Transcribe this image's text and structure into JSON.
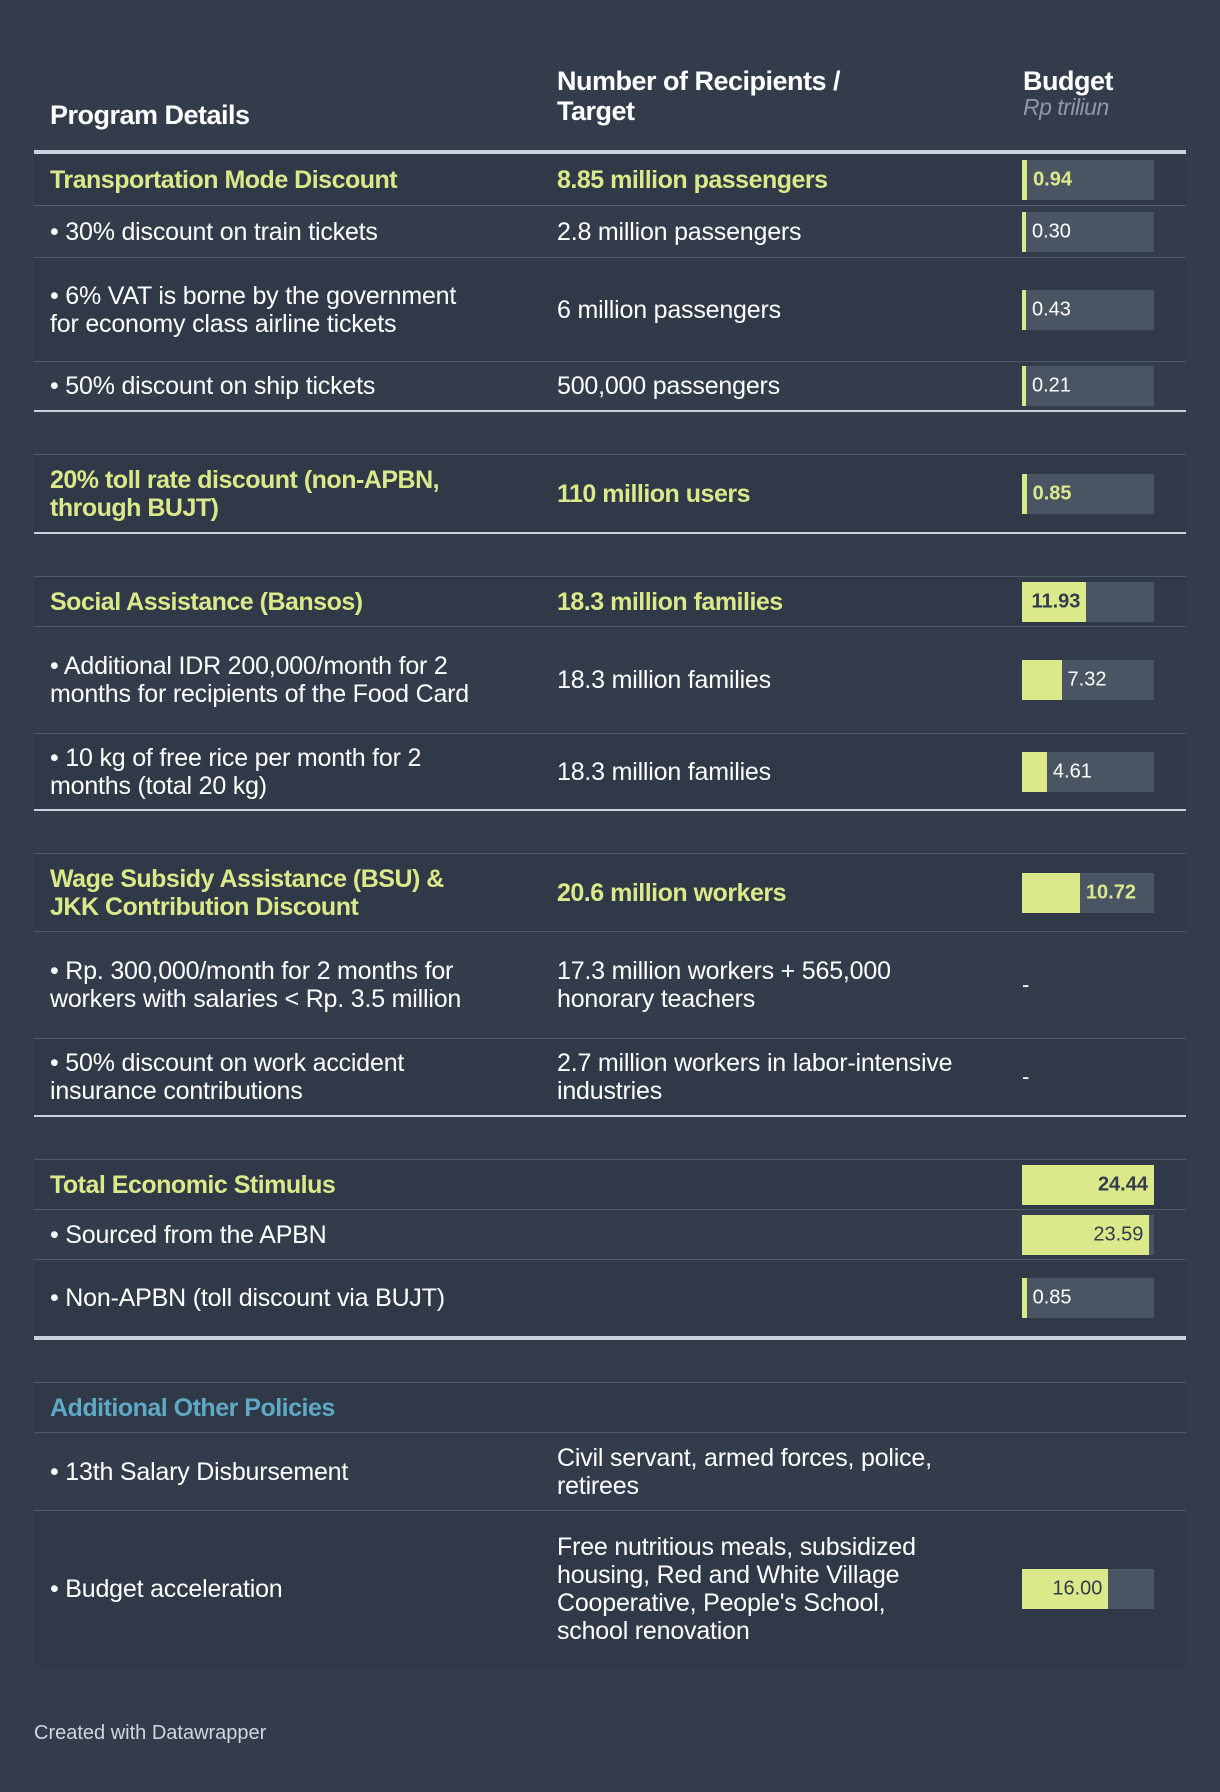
{
  "header": {
    "col1": "Program Details",
    "col2_line1": "Number of Recipients /",
    "col2_line2": "Target",
    "col3": "Budget",
    "col3_sub": "Rp triliun"
  },
  "colors": {
    "background": "#323c4b",
    "bar": "#dbe98a",
    "bar_track": "#4a5564",
    "highlight_text": "#dbe98a",
    "section_text": "#5fa9c6"
  },
  "chart_data": {
    "type": "table",
    "bar_max": 24.44,
    "rows": [
      {
        "program": "Transportation Mode Discount",
        "recipients": "8.85 million passengers",
        "budget": 0.94,
        "budget_label": "0.94",
        "style": "highlight"
      },
      {
        "program": "• 30% discount on train tickets",
        "recipients": "2.8 million passengers",
        "budget": 0.3,
        "budget_label": "0.30",
        "style": "normal"
      },
      {
        "program": "• 6% VAT is borne by the government for economy class airline tickets",
        "recipients": "6 million passengers",
        "budget": 0.43,
        "budget_label": "0.43",
        "style": "normal"
      },
      {
        "program": "• 50% discount on ship tickets",
        "recipients": "500,000 passengers",
        "budget": 0.21,
        "budget_label": "0.21",
        "style": "normal"
      },
      {
        "program": "20% toll rate discount (non-APBN, through BUJT)",
        "recipients": "110 million users",
        "budget": 0.85,
        "budget_label": "0.85",
        "style": "highlight"
      },
      {
        "program": "Social Assistance (Bansos)",
        "recipients": "18.3 million families",
        "budget": 11.93,
        "budget_label": "11.93",
        "style": "highlight"
      },
      {
        "program": "• Additional IDR 200,000/month for 2 months for recipients of the Food Card",
        "recipients": "18.3 million families",
        "budget": 7.32,
        "budget_label": "7.32",
        "style": "normal"
      },
      {
        "program": "• 10 kg of free rice per month for 2 months (total 20 kg)",
        "recipients": "18.3 million families",
        "budget": 4.61,
        "budget_label": "4.61",
        "style": "normal"
      },
      {
        "program": "Wage Subsidy Assistance (BSU) & JKK Contribution Discount",
        "recipients": "20.6 million workers",
        "budget": 10.72,
        "budget_label": "10.72",
        "style": "highlight"
      },
      {
        "program": "• Rp. 300,000/month for 2 months for workers with salaries < Rp. 3.5 million",
        "recipients": "17.3 million workers + 565,000 honorary teachers",
        "budget": null,
        "budget_label": "-",
        "style": "normal"
      },
      {
        "program": "• 50% discount on work accident insurance contributions",
        "recipients": "2.7 million workers in labor-intensive industries",
        "budget": null,
        "budget_label": "-",
        "style": "normal"
      },
      {
        "program": "Total Economic Stimulus",
        "recipients": "",
        "budget": 24.44,
        "budget_label": "24.44",
        "style": "highlight"
      },
      {
        "program": "• Sourced from the APBN",
        "recipients": "",
        "budget": 23.59,
        "budget_label": "23.59",
        "style": "normal"
      },
      {
        "program": "• Non-APBN (toll discount via BUJT)",
        "recipients": "",
        "budget": 0.85,
        "budget_label": "0.85",
        "style": "normal"
      },
      {
        "program": "Additional Other Policies",
        "recipients": "",
        "budget": null,
        "budget_label": "",
        "style": "section"
      },
      {
        "program": "• 13th Salary Disbursement",
        "recipients": "Civil servant, armed forces, police, retirees",
        "budget": null,
        "budget_label": "",
        "style": "normal"
      },
      {
        "program": "• Budget acceleration",
        "recipients": "Free nutritious meals, subsidized housing, Red and White Village Cooperative, People's School, school renovation",
        "budget": 16.0,
        "budget_label": "16.00",
        "style": "normal"
      }
    ]
  },
  "footer": "Created with Datawrapper"
}
